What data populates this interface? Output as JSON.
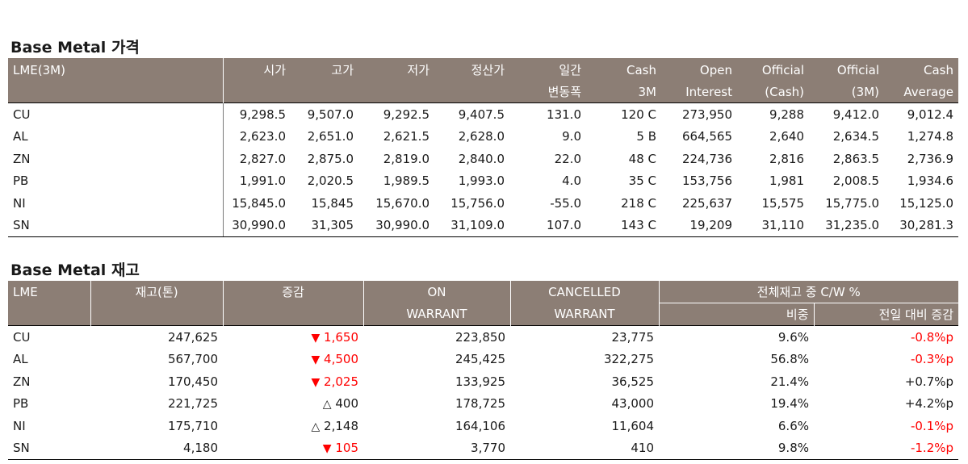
{
  "price_section": {
    "title": "Base Metal 가격",
    "header": {
      "col0": "LME(3M)",
      "open": "시가",
      "high": "고가",
      "low": "저가",
      "settle": "정산가",
      "daily_top": "일간",
      "daily_bottom": "변동폭",
      "cash_top": "Cash",
      "cash_bottom": "3M",
      "oi_top": "Open",
      "oi_bottom": "Interest",
      "oc_top": "Official",
      "oc_bottom": "(Cash)",
      "o3_top": "Official",
      "o3_bottom": "(3M)",
      "ca_top": "Cash",
      "ca_bottom": "Average"
    },
    "rows": [
      {
        "metal": "CU",
        "open": "9,298.5",
        "high": "9,507.0",
        "low": "9,292.5",
        "settle": "9,407.5",
        "change": "131.0",
        "cash3m": "120 C",
        "oi": "273,950",
        "off_cash": "9,288",
        "off_3m": "9,412.0",
        "cash_avg": "9,012.4"
      },
      {
        "metal": "AL",
        "open": "2,623.0",
        "high": "2,651.0",
        "low": "2,621.5",
        "settle": "2,628.0",
        "change": "9.0",
        "cash3m": "5 B",
        "oi": "664,565",
        "off_cash": "2,640",
        "off_3m": "2,634.5",
        "cash_avg": "1,274.8"
      },
      {
        "metal": "ZN",
        "open": "2,827.0",
        "high": "2,875.0",
        "low": "2,819.0",
        "settle": "2,840.0",
        "change": "22.0",
        "cash3m": "48 C",
        "oi": "224,736",
        "off_cash": "2,816",
        "off_3m": "2,863.5",
        "cash_avg": "2,736.9"
      },
      {
        "metal": "PB",
        "open": "1,991.0",
        "high": "2,020.5",
        "low": "1,989.5",
        "settle": "1,993.0",
        "change": "4.0",
        "cash3m": "35 C",
        "oi": "153,756",
        "off_cash": "1,981",
        "off_3m": "2,008.5",
        "cash_avg": "1,934.6"
      },
      {
        "metal": "NI",
        "open": "15,845.0",
        "high": "15,845",
        "low": "15,670.0",
        "settle": "15,756.0",
        "change": "-55.0",
        "cash3m": "218 C",
        "oi": "225,637",
        "off_cash": "15,575",
        "off_3m": "15,775.0",
        "cash_avg": "15,125.0"
      },
      {
        "metal": "SN",
        "open": "30,990.0",
        "high": "31,305",
        "low": "30,990.0",
        "settle": "31,109.0",
        "change": "107.0",
        "cash3m": "143 C",
        "oi": "19,209",
        "off_cash": "31,110",
        "off_3m": "31,235.0",
        "cash_avg": "30,281.3"
      }
    ]
  },
  "stock_section": {
    "title": "Base Metal 재고",
    "header": {
      "col0": "LME",
      "stock": "재고(톤)",
      "change": "증감",
      "on_top": "ON",
      "on_bottom": "WARRANT",
      "cw_top": "CANCELLED",
      "cw_bottom": "WARRANT",
      "group": "전체재고 중 C/W %",
      "ratio": "비중",
      "prev": "전일 대비 증감"
    },
    "colors": {
      "decrease": "#ff0000",
      "header_bg": "#8c7e75"
    },
    "rows": [
      {
        "metal": "CU",
        "stock": "247,625",
        "dir": "down",
        "arrow": "▼",
        "change": "1,650",
        "on": "223,850",
        "cw": "23,775",
        "ratio": "9.6%",
        "prev": "-0.8%p",
        "prev_neg": true
      },
      {
        "metal": "AL",
        "stock": "567,700",
        "dir": "down",
        "arrow": "▼",
        "change": "4,500",
        "on": "245,425",
        "cw": "322,275",
        "ratio": "56.8%",
        "prev": "-0.3%p",
        "prev_neg": true
      },
      {
        "metal": "ZN",
        "stock": "170,450",
        "dir": "down",
        "arrow": "▼",
        "change": "2,025",
        "on": "133,925",
        "cw": "36,525",
        "ratio": "21.4%",
        "prev": "+0.7%p",
        "prev_neg": false
      },
      {
        "metal": "PB",
        "stock": "221,725",
        "dir": "up",
        "arrow": "△",
        "change": "400",
        "on": "178,725",
        "cw": "43,000",
        "ratio": "19.4%",
        "prev": "+4.2%p",
        "prev_neg": false
      },
      {
        "metal": "NI",
        "stock": "175,710",
        "dir": "up",
        "arrow": "△",
        "change": "2,148",
        "on": "164,106",
        "cw": "11,604",
        "ratio": "6.6%",
        "prev": "-0.1%p",
        "prev_neg": true
      },
      {
        "metal": "SN",
        "stock": "4,180",
        "dir": "down",
        "arrow": "▼",
        "change": "105",
        "on": "3,770",
        "cw": "410",
        "ratio": "9.8%",
        "prev": "-1.2%p",
        "prev_neg": true
      }
    ]
  }
}
